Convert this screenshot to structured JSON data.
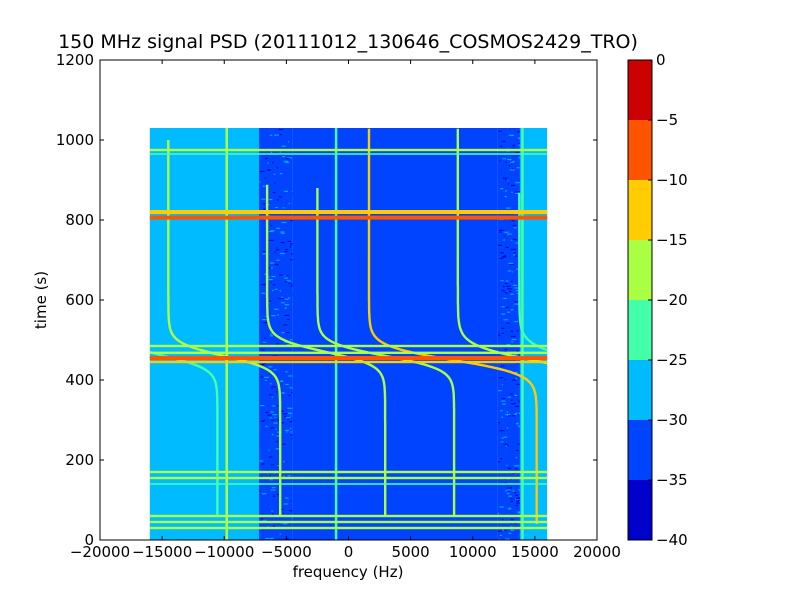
{
  "chart_data": {
    "type": "heatmap",
    "title": "150 MHz signal PSD (20111012_130646_COSMOS2429_TRO)",
    "xlabel": "frequency (Hz)",
    "ylabel": "time (s)",
    "xlim": [
      -20000,
      20000
    ],
    "ylim": [
      0,
      1200
    ],
    "x_ticks": [
      -20000,
      -15000,
      -10000,
      -5000,
      0,
      5000,
      10000,
      15000,
      20000
    ],
    "y_ticks": [
      0,
      200,
      400,
      600,
      800,
      1000,
      1200
    ],
    "data_extent": {
      "x": [
        -16000,
        16000
      ],
      "y": [
        0,
        1030
      ]
    },
    "colorbar": {
      "range": [
        -40,
        0
      ],
      "ticks": [
        0,
        -5,
        -10,
        -15,
        -20,
        -25,
        -30,
        -35,
        -40
      ],
      "levels": [
        {
          "from": -40,
          "to": -35,
          "color": "#0000cc"
        },
        {
          "from": -35,
          "to": -30,
          "color": "#0044ff"
        },
        {
          "from": -30,
          "to": -25,
          "color": "#00bbff"
        },
        {
          "from": -25,
          "to": -20,
          "color": "#44ffaa"
        },
        {
          "from": -20,
          "to": -15,
          "color": "#aaff44"
        },
        {
          "from": -15,
          "to": -10,
          "color": "#ffcc00"
        },
        {
          "from": -10,
          "to": -5,
          "color": "#ff5500"
        },
        {
          "from": -5,
          "to": 0,
          "color": "#cc0000"
        }
      ]
    },
    "background_regions": [
      {
        "x": [
          -16000,
          -7200
        ],
        "level": -27.5
      },
      {
        "x": [
          -7200,
          -4500
        ],
        "level": -32.5,
        "speckled": true
      },
      {
        "x": [
          -4500,
          12000
        ],
        "level": -32.5
      },
      {
        "x": [
          12000,
          13800
        ],
        "level": -32.5,
        "speckled": true
      },
      {
        "x": [
          13800,
          16000
        ],
        "level": -27.5
      }
    ],
    "horizontal_bands": [
      {
        "t": 975,
        "width": 6,
        "level": -17.5
      },
      {
        "t": 965,
        "width": 4,
        "level": -22.5
      },
      {
        "t": 820,
        "width": 10,
        "level": -12.5
      },
      {
        "t": 806,
        "width": 10,
        "level": -7.5
      },
      {
        "t": 485,
        "width": 6,
        "level": -17.5
      },
      {
        "t": 468,
        "width": 6,
        "level": -17.5
      },
      {
        "t": 455,
        "width": 10,
        "level": -7.5
      },
      {
        "t": 445,
        "width": 6,
        "level": -12.5
      },
      {
        "t": 170,
        "width": 6,
        "level": -17.5
      },
      {
        "t": 155,
        "width": 6,
        "level": -17.5
      },
      {
        "t": 140,
        "width": 4,
        "level": -22.5
      },
      {
        "t": 60,
        "width": 6,
        "level": -17.5
      },
      {
        "t": 45,
        "width": 6,
        "level": -17.5
      },
      {
        "t": 30,
        "width": 6,
        "level": -17.5
      }
    ],
    "vertical_lines": [
      {
        "f": -9800,
        "level": -17.5
      },
      {
        "f": -1000,
        "level": -22.5
      },
      {
        "f": 14000,
        "level": -22.5
      }
    ],
    "doppler_traces": [
      {
        "f0": 4200,
        "A": 13500,
        "tc": 450,
        "k": 0.028,
        "t": [
          40,
          1030
        ],
        "level": -12.5
      },
      {
        "f0": 7400,
        "A": 12000,
        "tc": 450,
        "k": 0.026,
        "t": [
          40,
          1030
        ],
        "level": -17.5
      },
      {
        "f0": 1500,
        "A": 11000,
        "tc": 460,
        "k": 0.03,
        "t": [
          60,
          880
        ],
        "level": -17.5
      },
      {
        "f0": -900,
        "A": 9500,
        "tc": 470,
        "k": 0.03,
        "t": [
          60,
          890
        ],
        "level": -17.5
      },
      {
        "f0": 9500,
        "A": 10500,
        "tc": 450,
        "k": 0.026,
        "t": [
          40,
          870
        ],
        "level": -22.5
      },
      {
        "f0": -5000,
        "A": 9000,
        "tc": 460,
        "k": 0.03,
        "t": [
          60,
          1000
        ],
        "level": -17.5
      },
      {
        "f0": -7400,
        "A": 8500,
        "tc": 460,
        "k": 0.03,
        "t": [
          60,
          900
        ],
        "level": -22.5
      },
      {
        "f0": -11000,
        "A": 7500,
        "tc": 470,
        "k": 0.034,
        "t": [
          200,
          840
        ],
        "level": -17.5
      },
      {
        "f0": -14000,
        "A": 7500,
        "tc": 480,
        "k": 0.04,
        "t": [
          330,
          780
        ],
        "level": -22.5
      }
    ]
  }
}
